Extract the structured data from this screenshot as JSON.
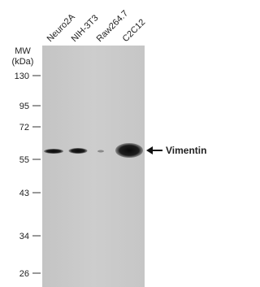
{
  "lanes": [
    "Neuro2A",
    "NIH-3T3",
    "Raw264.7",
    "C2C12"
  ],
  "mw_header": {
    "line1": "MW",
    "line2": "(kDa)"
  },
  "markers": [
    130,
    95,
    72,
    55,
    43,
    34,
    26
  ],
  "band_label": "Vimentin"
}
